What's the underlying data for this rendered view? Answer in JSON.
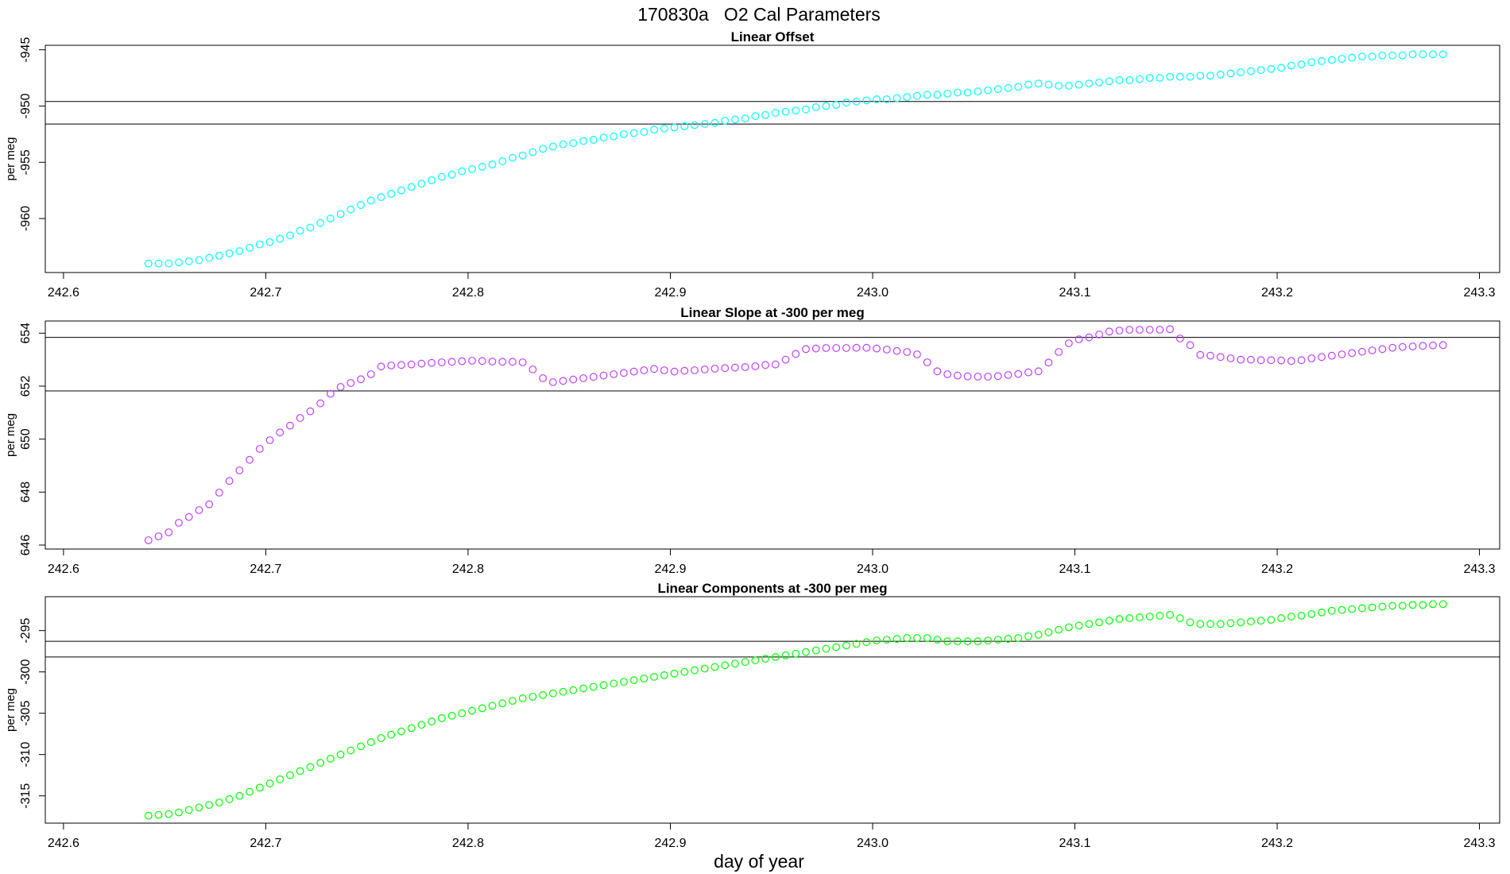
{
  "title": "170830a   O2 Cal Parameters",
  "xlabel": "day of year",
  "chart_data": [
    {
      "type": "scatter",
      "title": "Linear Offset",
      "ylabel": "per meg",
      "x": [
        242.642,
        242.647,
        242.652,
        242.657,
        242.662,
        242.667,
        242.672,
        242.677,
        242.682,
        242.687,
        242.692,
        242.697,
        242.702,
        242.707,
        242.712,
        242.717,
        242.722,
        242.727,
        242.732,
        242.737,
        242.742,
        242.747,
        242.752,
        242.757,
        242.762,
        242.767,
        242.772,
        242.777,
        242.782,
        242.787,
        242.792,
        242.797,
        242.802,
        242.807,
        242.812,
        242.817,
        242.822,
        242.827,
        242.832,
        242.837,
        242.842,
        242.847,
        242.852,
        242.857,
        242.862,
        242.867,
        242.872,
        242.877,
        242.882,
        242.887,
        242.892,
        242.897,
        242.902,
        242.907,
        242.912,
        242.917,
        242.922,
        242.927,
        242.932,
        242.937,
        242.942,
        242.947,
        242.952,
        242.957,
        242.962,
        242.967,
        242.972,
        242.977,
        242.982,
        242.987,
        242.992,
        242.997,
        243.002,
        243.007,
        243.012,
        243.017,
        243.022,
        243.027,
        243.032,
        243.037,
        243.042,
        243.047,
        243.052,
        243.057,
        243.062,
        243.067,
        243.072,
        243.077,
        243.082,
        243.087,
        243.092,
        243.097,
        243.102,
        243.107,
        243.112,
        243.117,
        243.122,
        243.127,
        243.132,
        243.137,
        243.142,
        243.147,
        243.152,
        243.157,
        243.162,
        243.167,
        243.172,
        243.177,
        243.182,
        243.187,
        243.192,
        243.197,
        243.202,
        243.207,
        243.212,
        243.217,
        243.222,
        243.227,
        243.232,
        243.237,
        243.242,
        243.247,
        243.252,
        243.257,
        243.262,
        243.267,
        243.272,
        243.277,
        243.282
      ],
      "series": [
        {
          "color": "#00ffff",
          "values": [
            -964.0,
            -964.0,
            -964.0,
            -963.9,
            -963.8,
            -963.7,
            -963.5,
            -963.3,
            -963.1,
            -962.9,
            -962.6,
            -962.3,
            -962.1,
            -961.8,
            -961.5,
            -961.1,
            -960.8,
            -960.4,
            -960.0,
            -959.6,
            -959.2,
            -958.8,
            -958.4,
            -958.1,
            -957.8,
            -957.5,
            -957.2,
            -956.9,
            -956.6,
            -956.3,
            -956.1,
            -955.8,
            -955.6,
            -955.4,
            -955.2,
            -954.9,
            -954.6,
            -954.4,
            -954.1,
            -953.8,
            -953.6,
            -953.4,
            -953.3,
            -953.1,
            -953.0,
            -952.8,
            -952.7,
            -952.5,
            -952.4,
            -952.3,
            -952.1,
            -952.0,
            -951.9,
            -951.8,
            -951.7,
            -951.6,
            -951.5,
            -951.3,
            -951.2,
            -951.1,
            -950.9,
            -950.8,
            -950.6,
            -950.5,
            -950.4,
            -950.3,
            -950.1,
            -950.0,
            -949.9,
            -949.7,
            -949.6,
            -949.5,
            -949.4,
            -949.4,
            -949.3,
            -949.2,
            -949.1,
            -949.0,
            -949.0,
            -948.9,
            -948.8,
            -948.8,
            -948.7,
            -948.6,
            -948.5,
            -948.4,
            -948.3,
            -948.1,
            -948.0,
            -948.1,
            -948.2,
            -948.2,
            -948.1,
            -948.0,
            -947.9,
            -947.8,
            -947.7,
            -947.7,
            -947.6,
            -947.5,
            -947.5,
            -947.4,
            -947.4,
            -947.4,
            -947.3,
            -947.3,
            -947.2,
            -947.1,
            -947.0,
            -946.9,
            -946.8,
            -946.7,
            -946.6,
            -946.4,
            -946.3,
            -946.1,
            -946.0,
            -945.9,
            -945.8,
            -945.7,
            -945.6,
            -945.6,
            -945.5,
            -945.5,
            -945.5,
            -945.4,
            -945.4,
            -945.4,
            -945.4
          ]
        }
      ],
      "hlines": [
        -949.6,
        -951.6
      ],
      "xlim": [
        242.591,
        243.31
      ],
      "xticks": [
        242.6,
        242.7,
        242.8,
        242.9,
        {
          "value": 243,
          "label": "243.0"
        },
        243.1,
        243.2,
        243.3
      ],
      "ylim": [
        -964.8,
        -944.6
      ],
      "yticks": [
        -945,
        -950,
        -955,
        -960
      ]
    },
    {
      "type": "scatter",
      "title": "Linear Slope at -300 per meg",
      "ylabel": "per meg",
      "x": [
        242.642,
        242.647,
        242.652,
        242.657,
        242.662,
        242.667,
        242.672,
        242.677,
        242.682,
        242.687,
        242.692,
        242.697,
        242.702,
        242.707,
        242.712,
        242.717,
        242.722,
        242.727,
        242.732,
        242.737,
        242.742,
        242.747,
        242.752,
        242.757,
        242.762,
        242.767,
        242.772,
        242.777,
        242.782,
        242.787,
        242.792,
        242.797,
        242.802,
        242.807,
        242.812,
        242.817,
        242.822,
        242.827,
        242.832,
        242.837,
        242.842,
        242.847,
        242.852,
        242.857,
        242.862,
        242.867,
        242.872,
        242.877,
        242.882,
        242.887,
        242.892,
        242.897,
        242.902,
        242.907,
        242.912,
        242.917,
        242.922,
        242.927,
        242.932,
        242.937,
        242.942,
        242.947,
        242.952,
        242.957,
        242.962,
        242.967,
        242.972,
        242.977,
        242.982,
        242.987,
        242.992,
        242.997,
        243.002,
        243.007,
        243.012,
        243.017,
        243.022,
        243.027,
        243.032,
        243.037,
        243.042,
        243.047,
        243.052,
        243.057,
        243.062,
        243.067,
        243.072,
        243.077,
        243.082,
        243.087,
        243.092,
        243.097,
        243.102,
        243.107,
        243.112,
        243.117,
        243.122,
        243.127,
        243.132,
        243.137,
        243.142,
        243.147,
        243.152,
        243.157,
        243.162,
        243.167,
        243.172,
        243.177,
        243.182,
        243.187,
        243.192,
        243.197,
        243.202,
        243.207,
        243.212,
        243.217,
        243.222,
        243.227,
        243.232,
        243.237,
        243.242,
        243.247,
        243.252,
        243.257,
        243.262,
        243.267,
        243.272,
        243.277,
        243.282
      ],
      "series": [
        {
          "color": "#bf3eff",
          "values": [
            646.18,
            646.33,
            646.48,
            646.84,
            647.06,
            647.32,
            647.54,
            647.98,
            648.42,
            648.82,
            649.22,
            649.63,
            649.96,
            650.25,
            650.51,
            650.8,
            651.05,
            651.35,
            651.71,
            651.97,
            652.12,
            652.26,
            652.45,
            652.74,
            652.78,
            652.8,
            652.82,
            652.85,
            652.88,
            652.9,
            652.92,
            652.94,
            652.96,
            652.95,
            652.93,
            652.92,
            652.92,
            652.9,
            652.63,
            652.3,
            652.15,
            652.2,
            652.25,
            652.3,
            652.35,
            652.4,
            652.45,
            652.5,
            652.55,
            652.6,
            652.65,
            652.6,
            652.55,
            652.58,
            652.6,
            652.63,
            652.66,
            652.68,
            652.7,
            652.72,
            652.75,
            652.8,
            652.82,
            653.0,
            653.22,
            653.4,
            653.42,
            653.44,
            653.44,
            653.44,
            653.45,
            653.45,
            653.42,
            653.38,
            653.33,
            653.29,
            653.2,
            652.9,
            652.56,
            652.45,
            652.4,
            652.37,
            652.36,
            652.36,
            652.38,
            652.42,
            652.46,
            652.52,
            652.56,
            652.89,
            653.29,
            653.62,
            653.77,
            653.84,
            653.95,
            654.06,
            654.1,
            654.13,
            654.13,
            654.13,
            654.13,
            654.15,
            653.8,
            653.55,
            653.18,
            653.15,
            653.1,
            653.05,
            653.0,
            653.0,
            652.98,
            652.98,
            652.97,
            652.95,
            652.98,
            653.05,
            653.1,
            653.15,
            653.2,
            653.25,
            653.3,
            653.35,
            653.4,
            653.45,
            653.48,
            653.5,
            653.52,
            653.54,
            653.55
          ]
        }
      ],
      "hlines": [
        653.84,
        651.82
      ],
      "xlim": [
        242.591,
        243.31
      ],
      "xticks": [
        242.6,
        242.7,
        242.8,
        242.9,
        {
          "value": 243,
          "label": "243.0"
        },
        243.1,
        243.2,
        243.3
      ],
      "ylim": [
        645.85,
        654.46
      ],
      "yticks": [
        646,
        648,
        650,
        652,
        654
      ]
    },
    {
      "type": "scatter",
      "title": "Linear Components at -300 per meg",
      "ylabel": "per meg",
      "x": [
        242.642,
        242.647,
        242.652,
        242.657,
        242.662,
        242.667,
        242.672,
        242.677,
        242.682,
        242.687,
        242.692,
        242.697,
        242.702,
        242.707,
        242.712,
        242.717,
        242.722,
        242.727,
        242.732,
        242.737,
        242.742,
        242.747,
        242.752,
        242.757,
        242.762,
        242.767,
        242.772,
        242.777,
        242.782,
        242.787,
        242.792,
        242.797,
        242.802,
        242.807,
        242.812,
        242.817,
        242.822,
        242.827,
        242.832,
        242.837,
        242.842,
        242.847,
        242.852,
        242.857,
        242.862,
        242.867,
        242.872,
        242.877,
        242.882,
        242.887,
        242.892,
        242.897,
        242.902,
        242.907,
        242.912,
        242.917,
        242.922,
        242.927,
        242.932,
        242.937,
        242.942,
        242.947,
        242.952,
        242.957,
        242.962,
        242.967,
        242.972,
        242.977,
        242.982,
        242.987,
        242.992,
        242.997,
        243.002,
        243.007,
        243.012,
        243.017,
        243.022,
        243.027,
        243.032,
        243.037,
        243.042,
        243.047,
        243.052,
        243.057,
        243.062,
        243.067,
        243.072,
        243.077,
        243.082,
        243.087,
        243.092,
        243.097,
        243.102,
        243.107,
        243.112,
        243.117,
        243.122,
        243.127,
        243.132,
        243.137,
        243.142,
        243.147,
        243.152,
        243.157,
        243.162,
        243.167,
        243.172,
        243.177,
        243.182,
        243.187,
        243.192,
        243.197,
        243.202,
        243.207,
        243.212,
        243.217,
        243.222,
        243.227,
        243.232,
        243.237,
        243.242,
        243.247,
        243.252,
        243.257,
        243.262,
        243.267,
        243.272,
        243.277,
        243.282
      ],
      "series": [
        {
          "color": "#00ff00",
          "values": [
            -317.4,
            -317.3,
            -317.2,
            -317.0,
            -316.7,
            -316.4,
            -316.1,
            -315.8,
            -315.4,
            -315.0,
            -314.5,
            -314.0,
            -313.5,
            -313.0,
            -312.5,
            -312.0,
            -311.5,
            -311.0,
            -310.5,
            -310.0,
            -309.5,
            -309.0,
            -308.5,
            -308.0,
            -307.6,
            -307.2,
            -306.8,
            -306.4,
            -306.0,
            -305.6,
            -305.3,
            -305.0,
            -304.7,
            -304.4,
            -304.1,
            -303.8,
            -303.5,
            -303.2,
            -303.0,
            -302.8,
            -302.6,
            -302.4,
            -302.2,
            -302.0,
            -301.8,
            -301.6,
            -301.4,
            -301.2,
            -301.0,
            -300.8,
            -300.6,
            -300.4,
            -300.2,
            -300.0,
            -299.8,
            -299.6,
            -299.4,
            -299.2,
            -299.0,
            -298.8,
            -298.6,
            -298.4,
            -298.2,
            -298.0,
            -297.8,
            -297.6,
            -297.4,
            -297.2,
            -297.0,
            -296.8,
            -296.6,
            -296.4,
            -296.2,
            -296.1,
            -296.0,
            -295.9,
            -295.9,
            -295.9,
            -296.1,
            -296.3,
            -296.3,
            -296.3,
            -296.3,
            -296.2,
            -296.1,
            -296.0,
            -295.9,
            -295.7,
            -295.5,
            -295.2,
            -294.9,
            -294.6,
            -294.4,
            -294.2,
            -294.0,
            -293.8,
            -293.6,
            -293.5,
            -293.4,
            -293.3,
            -293.2,
            -293.1,
            -293.5,
            -294.0,
            -294.2,
            -294.2,
            -294.2,
            -294.1,
            -294.0,
            -293.9,
            -293.8,
            -293.7,
            -293.5,
            -293.3,
            -293.2,
            -293.0,
            -292.8,
            -292.6,
            -292.5,
            -292.4,
            -292.3,
            -292.2,
            -292.1,
            -292.0,
            -292.0,
            -291.9,
            -291.9,
            -291.8,
            -291.8
          ]
        }
      ],
      "hlines": [
        -296.3,
        -298.2
      ],
      "xlim": [
        242.591,
        243.31
      ],
      "xticks": [
        242.6,
        242.7,
        242.8,
        242.9,
        {
          "value": 243,
          "label": "243.0"
        },
        243.1,
        243.2,
        243.3
      ],
      "ylim": [
        -318.3,
        -290.9
      ],
      "yticks": [
        -295,
        -300,
        -305,
        -310,
        -315
      ]
    }
  ]
}
